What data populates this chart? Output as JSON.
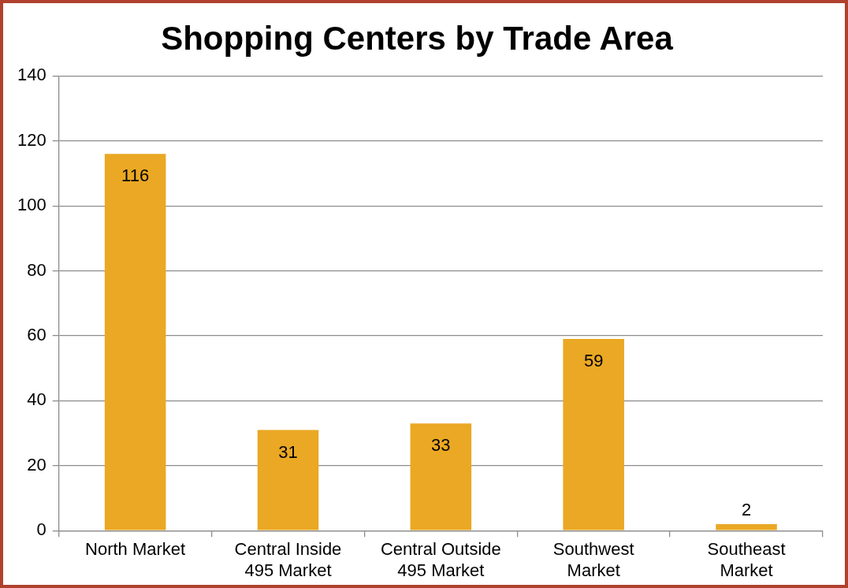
{
  "chart_data": {
    "type": "bar",
    "title": "Shopping Centers by Trade Area",
    "categories": [
      "North Market",
      "Central Inside 495 Market",
      "Central Outside 495 Market",
      "Southwest Market",
      "Southeast Market"
    ],
    "values": [
      116,
      31,
      33,
      59,
      2
    ],
    "color": "#eaa824",
    "ylim": [
      0,
      140
    ],
    "yticks": [
      0,
      20,
      40,
      60,
      80,
      100,
      120,
      140
    ],
    "grid": "y",
    "data_labels": true,
    "legend": false
  }
}
